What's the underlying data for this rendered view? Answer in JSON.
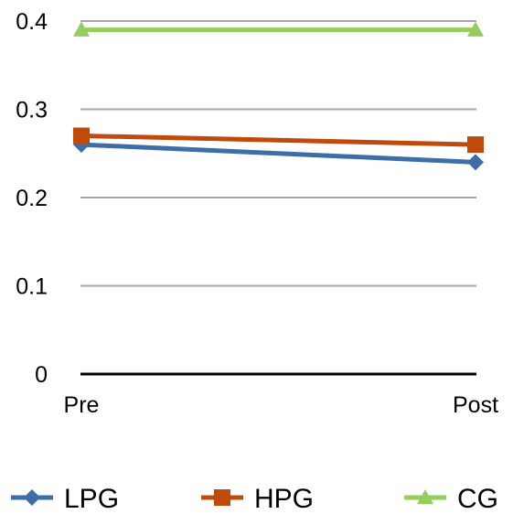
{
  "chart_data": {
    "type": "line",
    "categories": [
      "Pre",
      "Post"
    ],
    "ylim": [
      0,
      0.4
    ],
    "yticks": [
      "0",
      "0.1",
      "0.2",
      "0.3",
      "0.4"
    ],
    "grid": true,
    "legend_position": "bottom",
    "series": [
      {
        "name": "LPG",
        "values": [
          0.26,
          0.24
        ],
        "color": "#3d6ea8",
        "marker": "diamond"
      },
      {
        "name": "HPG",
        "values": [
          0.27,
          0.26
        ],
        "color": "#c04a0c",
        "marker": "square"
      },
      {
        "name": "CG",
        "values": [
          0.39,
          0.39
        ],
        "color": "#93cf5a",
        "marker": "triangle"
      }
    ]
  }
}
